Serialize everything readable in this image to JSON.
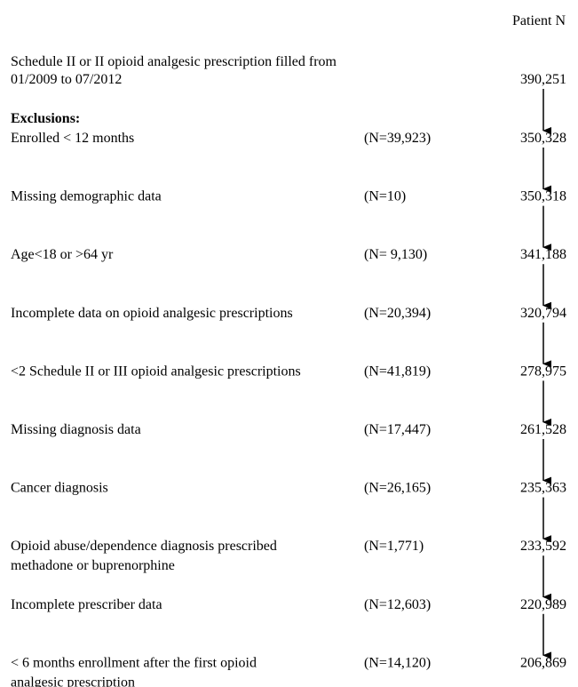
{
  "header": {
    "column_title": "Patient N"
  },
  "start": {
    "label_lines": [
      "Schedule II or II opioid analgesic prescription filled from",
      "01/2009 to 07/2012"
    ],
    "count": "390,251"
  },
  "exclusions_heading": "Exclusions:",
  "steps": [
    {
      "label_lines": [
        "Enrolled < 12 months"
      ],
      "excluded": "(N=39,923)",
      "count": "350,328"
    },
    {
      "label_lines": [
        "Missing demographic data"
      ],
      "excluded": "(N=10)",
      "count": "350,318"
    },
    {
      "label_lines": [
        "Age<18 or >64 yr"
      ],
      "excluded": "(N= 9,130)",
      "count": "341,188"
    },
    {
      "label_lines": [
        "Incomplete data on opioid analgesic prescriptions"
      ],
      "excluded": "(N=20,394)",
      "count": "320,794"
    },
    {
      "label_lines": [
        "<2 Schedule II or III opioid analgesic prescriptions"
      ],
      "excluded": "(N=41,819)",
      "count": "278,975"
    },
    {
      "label_lines": [
        "Missing diagnosis data"
      ],
      "excluded": "(N=17,447)",
      "count": "261,528"
    },
    {
      "label_lines": [
        "Cancer diagnosis"
      ],
      "excluded": "(N=26,165)",
      "count": "235,363"
    },
    {
      "label_lines": [
        "Opioid abuse/dependence diagnosis prescribed",
        "methadone or buprenorphine"
      ],
      "excluded": "(N=1,771)",
      "count": "233,592"
    },
    {
      "label_lines": [
        "Incomplete prescriber data"
      ],
      "excluded": "(N=12,603)",
      "count": "220,989"
    },
    {
      "label_lines": [
        "< 6 months enrollment after the first opioid",
        "analgesic prescription"
      ],
      "excluded": "(N=14,120)",
      "count": "206,869"
    }
  ]
}
